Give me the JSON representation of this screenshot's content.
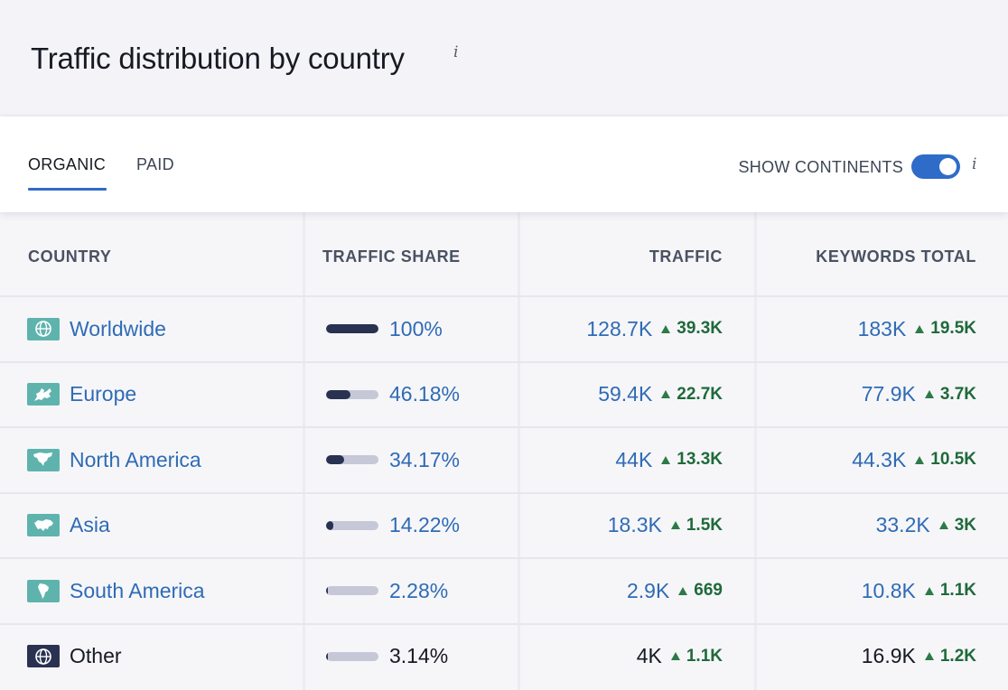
{
  "header": {
    "title": "Traffic distribution by country",
    "info": "i"
  },
  "tabs": {
    "organic": "ORGANIC",
    "paid": "PAID",
    "active": "organic"
  },
  "toggle": {
    "label": "SHOW CONTINENTS",
    "on": true,
    "info": "i"
  },
  "table": {
    "columns": {
      "country": "COUNTRY",
      "share": "TRAFFIC SHARE",
      "traffic": "TRAFFIC",
      "keywords": "KEYWORDS TOTAL"
    },
    "rows": [
      {
        "name": "Worldwide",
        "icon": "globe-icon",
        "share_pct": 100,
        "share": "100%",
        "traffic": "128.7K",
        "traffic_delta": "39.3K",
        "keywords": "183K",
        "keywords_delta": "19.5K",
        "linked": true
      },
      {
        "name": "Europe",
        "icon": "europe-map-icon",
        "share_pct": 46.18,
        "share": "46.18%",
        "traffic": "59.4K",
        "traffic_delta": "22.7K",
        "keywords": "77.9K",
        "keywords_delta": "3.7K",
        "linked": true
      },
      {
        "name": "North America",
        "icon": "north-america-map-icon",
        "share_pct": 34.17,
        "share": "34.17%",
        "traffic": "44K",
        "traffic_delta": "13.3K",
        "keywords": "44.3K",
        "keywords_delta": "10.5K",
        "linked": true
      },
      {
        "name": "Asia",
        "icon": "asia-map-icon",
        "share_pct": 14.22,
        "share": "14.22%",
        "traffic": "18.3K",
        "traffic_delta": "1.5K",
        "keywords": "33.2K",
        "keywords_delta": "3K",
        "linked": true
      },
      {
        "name": "South America",
        "icon": "south-america-map-icon",
        "share_pct": 2.28,
        "share": "2.28%",
        "traffic": "2.9K",
        "traffic_delta": "669",
        "keywords": "10.8K",
        "keywords_delta": "1.1K",
        "linked": true
      },
      {
        "name": "Other",
        "icon": "globe-icon",
        "share_pct": 3.14,
        "share": "3.14%",
        "traffic": "4K",
        "traffic_delta": "1.1K",
        "keywords": "16.9K",
        "keywords_delta": "1.2K",
        "linked": false
      }
    ]
  },
  "colors": {
    "accent": "#2f6bc9",
    "link": "#2f6bb5",
    "positive": "#1f6a3a",
    "bar": "#2a3252",
    "bar_track": "#c6c8d8",
    "flag": "#5fb3ad"
  }
}
